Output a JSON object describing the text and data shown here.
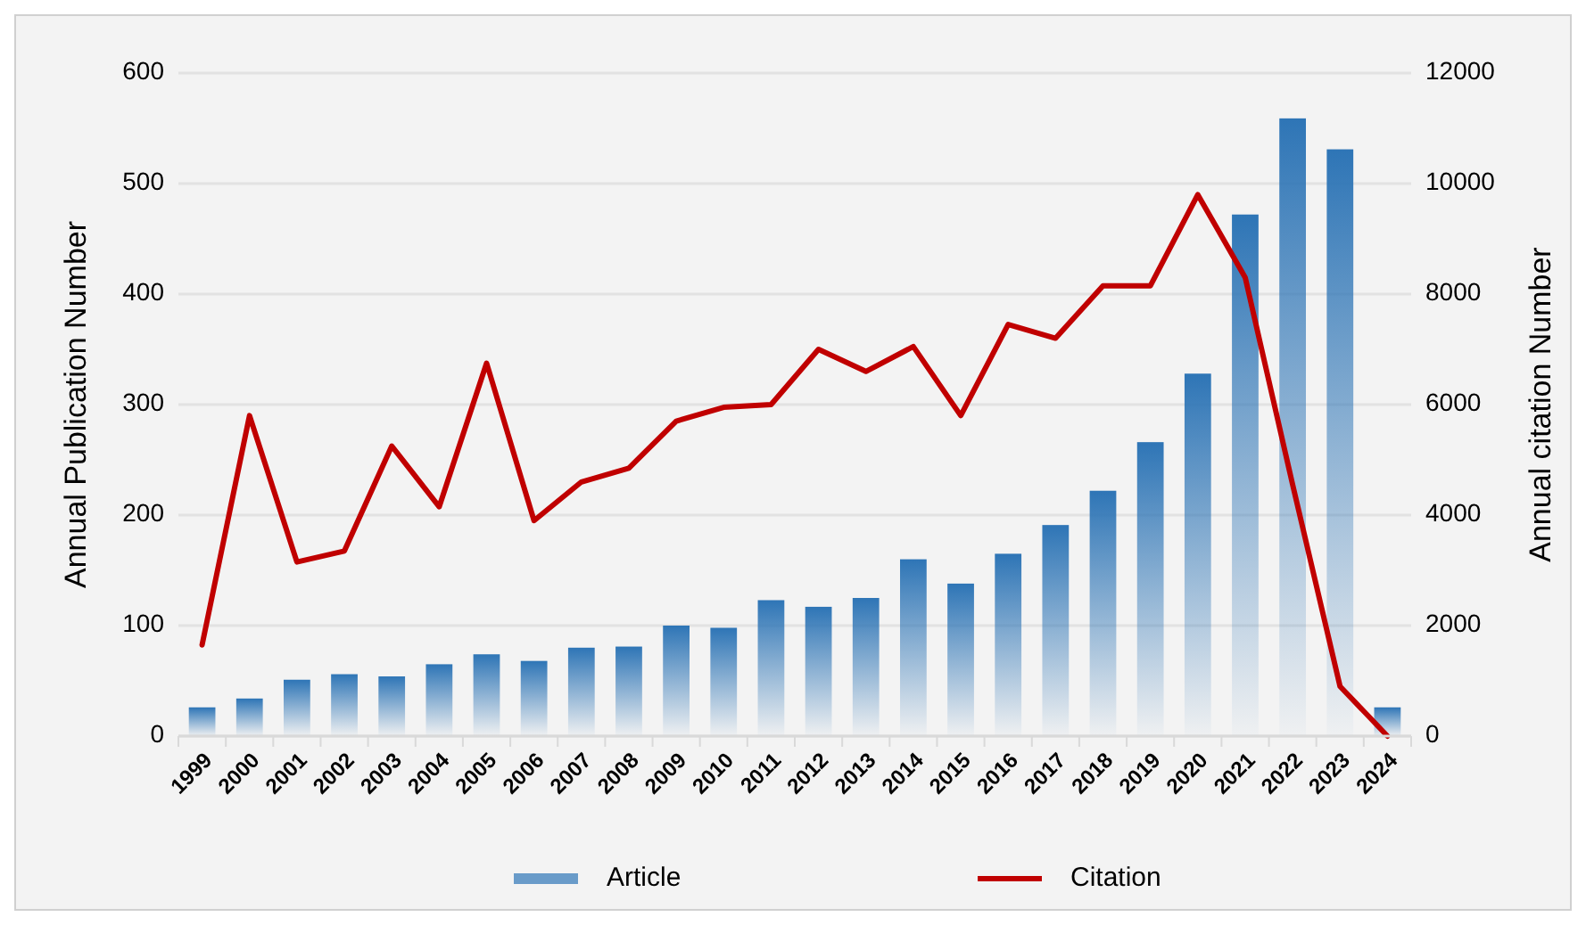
{
  "chart_data": {
    "type": "bar",
    "ylabel": "Annual Publication Number",
    "y2label": "Annual citation Number",
    "categories": [
      "1999",
      "2000",
      "2001",
      "2002",
      "2003",
      "2004",
      "2005",
      "2006",
      "2007",
      "2008",
      "2009",
      "2010",
      "2011",
      "2012",
      "2013",
      "2014",
      "2015",
      "2016",
      "2017",
      "2018",
      "2019",
      "2020",
      "2021",
      "2022",
      "2023",
      "2024"
    ],
    "series": [
      {
        "name": "Article",
        "color": "#2e75b6",
        "values": [
          26,
          34,
          51,
          56,
          54,
          65,
          74,
          68,
          80,
          81,
          100,
          98,
          123,
          117,
          125,
          160,
          138,
          165,
          191,
          222,
          266,
          328,
          472,
          559,
          531,
          26
        ]
      },
      {
        "name": "Citation",
        "type": "line",
        "axis": "y2",
        "color": "#c00000",
        "values": [
          1650,
          5800,
          3150,
          3350,
          5250,
          4150,
          6750,
          3900,
          4600,
          4850,
          5700,
          5950,
          6000,
          7000,
          6600,
          7050,
          5800,
          7450,
          7200,
          8150,
          8150,
          9800,
          8300,
          4550,
          900,
          0
        ]
      }
    ],
    "ylim": [
      0,
      600
    ],
    "yticks": [
      0,
      100,
      200,
      300,
      400,
      500,
      600
    ],
    "y2lim": [
      0,
      12000
    ],
    "y2ticks": [
      0,
      2000,
      4000,
      6000,
      8000,
      10000,
      12000
    ],
    "grid": "y",
    "legend": "bottom",
    "marker": "none",
    "line_style": "solid"
  }
}
